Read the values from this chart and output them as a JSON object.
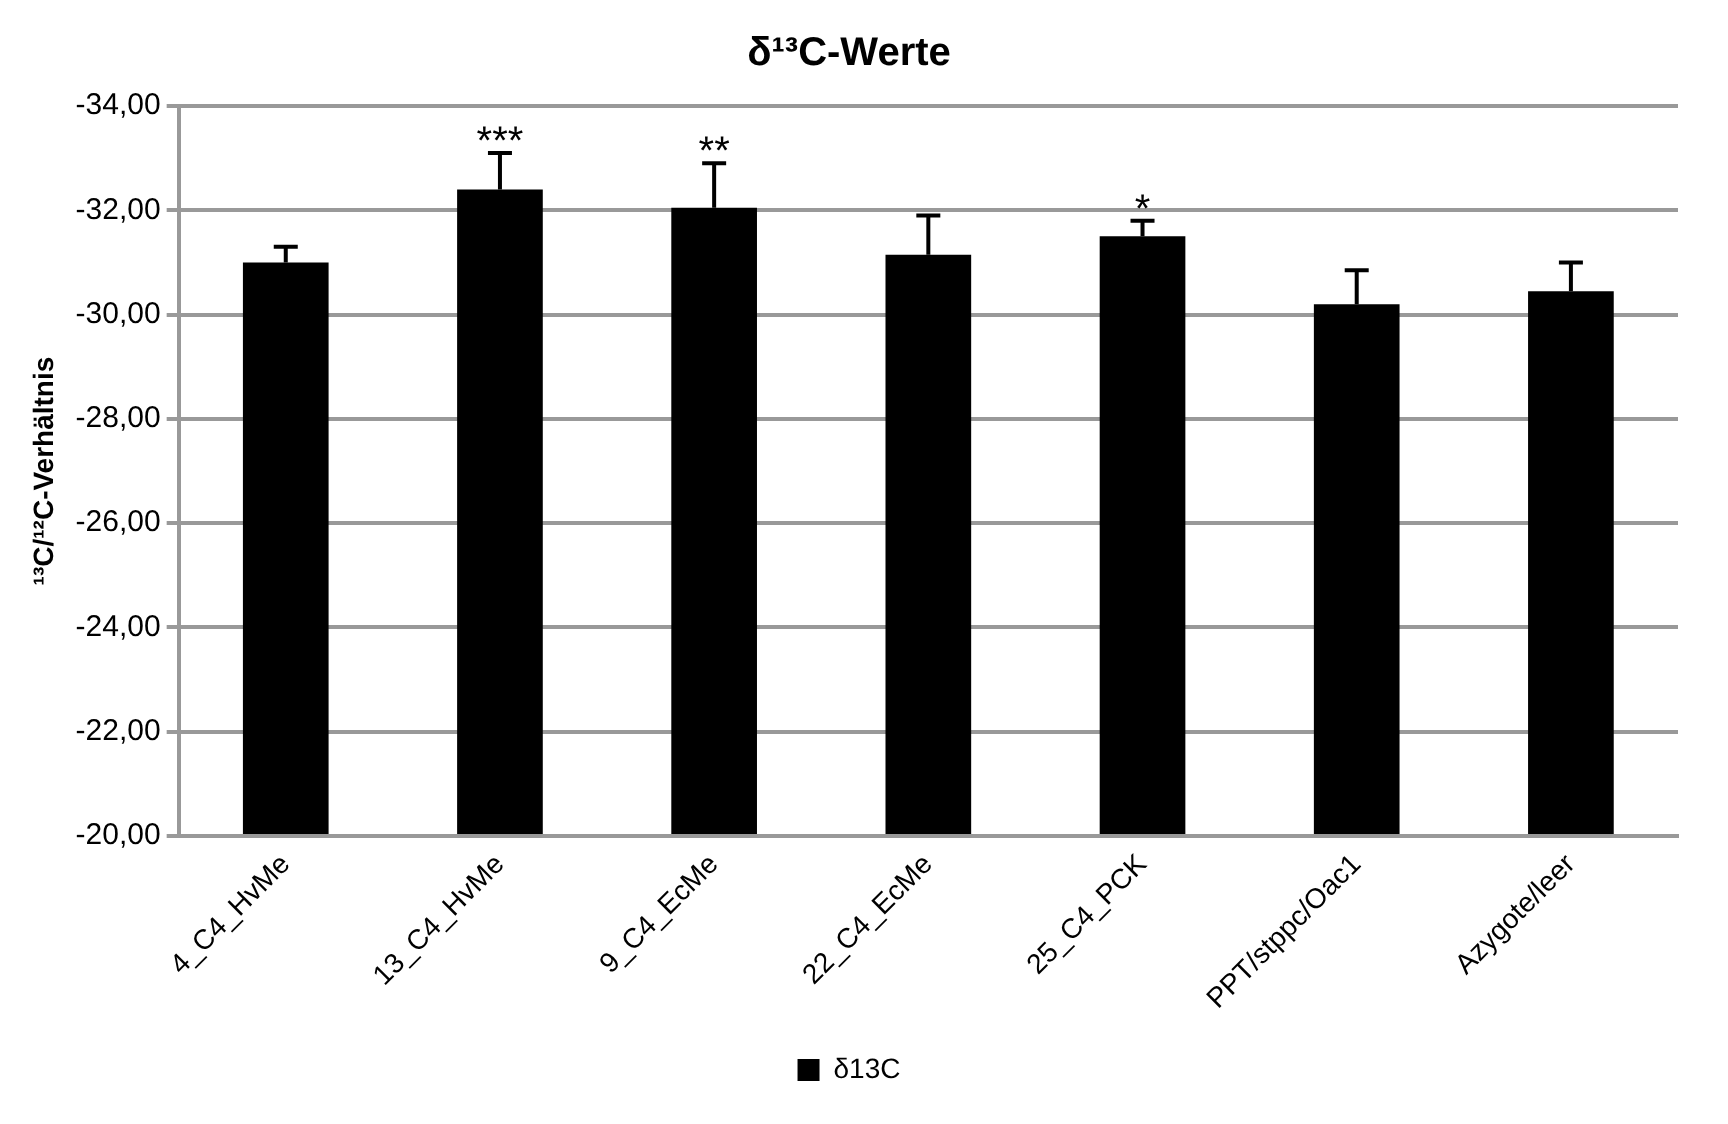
{
  "chart_data": {
    "type": "bar",
    "title": "δ¹³C-Werte",
    "ylabel": "¹³C/¹²C-Verhältnis",
    "categories": [
      "4_C4_HvMe",
      "13_C4_HvMe",
      "9_C4_EcMe",
      "22_C4_EcMe",
      "25_C4_PCK",
      "PPT/stppc/Oac1",
      "Azygote/leer"
    ],
    "series": [
      {
        "name": "δ13C",
        "color": "#000000",
        "values": [
          -31.0,
          -32.4,
          -32.05,
          -31.15,
          -31.5,
          -30.2,
          -30.45
        ],
        "errors": [
          [
            -31.3,
            -31.0
          ],
          [
            -33.1,
            -32.4
          ],
          [
            -32.9,
            -32.05
          ],
          [
            -31.9,
            -31.15
          ],
          [
            -31.8,
            -31.5
          ],
          [
            -30.85,
            -30.2
          ],
          [
            -31.0,
            -30.45
          ]
        ]
      }
    ],
    "ylim": [
      -20,
      -34
    ],
    "yticks": [
      {
        "value": -20,
        "label": "-20,00"
      },
      {
        "value": -22,
        "label": "-22,00"
      },
      {
        "value": -24,
        "label": "-24,00"
      },
      {
        "value": -26,
        "label": "-26,00"
      },
      {
        "value": -28,
        "label": "-28,00"
      },
      {
        "value": -30,
        "label": "-30,00"
      },
      {
        "value": -32,
        "label": "-32,00"
      },
      {
        "value": -34,
        "label": "-34,00"
      }
    ],
    "annotations": [
      {
        "text": "***",
        "x": "13_C4_HvMe",
        "y": -33.1
      },
      {
        "text": "**",
        "x": "9_C4_EcMe",
        "y": -32.9
      },
      {
        "text": "*",
        "x": "25_C4_PCK",
        "y": -31.8
      }
    ],
    "grid": "y",
    "legend": "bottom"
  }
}
